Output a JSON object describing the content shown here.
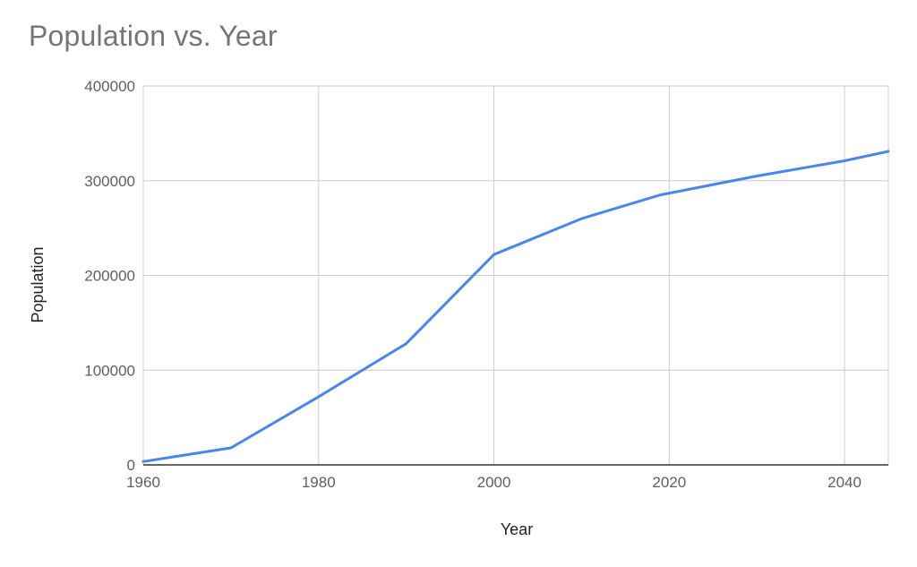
{
  "chart_data": {
    "type": "line",
    "title": "Population vs. Year",
    "xlabel": "Year",
    "ylabel": "Population",
    "xlim": [
      1960,
      2045
    ],
    "ylim": [
      0,
      400000
    ],
    "x_ticks": [
      "1960",
      "1980",
      "2000",
      "2020",
      "2040"
    ],
    "y_ticks": [
      "0",
      "100000",
      "200000",
      "300000",
      "400000"
    ],
    "grid": true,
    "legend": "none",
    "series": [
      {
        "color": "#4a86e8",
        "x": [
          1960,
          1970,
          1980,
          1990,
          2000,
          2010,
          2019,
          2030,
          2040,
          2045
        ],
        "y": [
          3500,
          18000,
          72000,
          128000,
          222000,
          260000,
          285000,
          305000,
          321000,
          331000
        ]
      }
    ]
  }
}
